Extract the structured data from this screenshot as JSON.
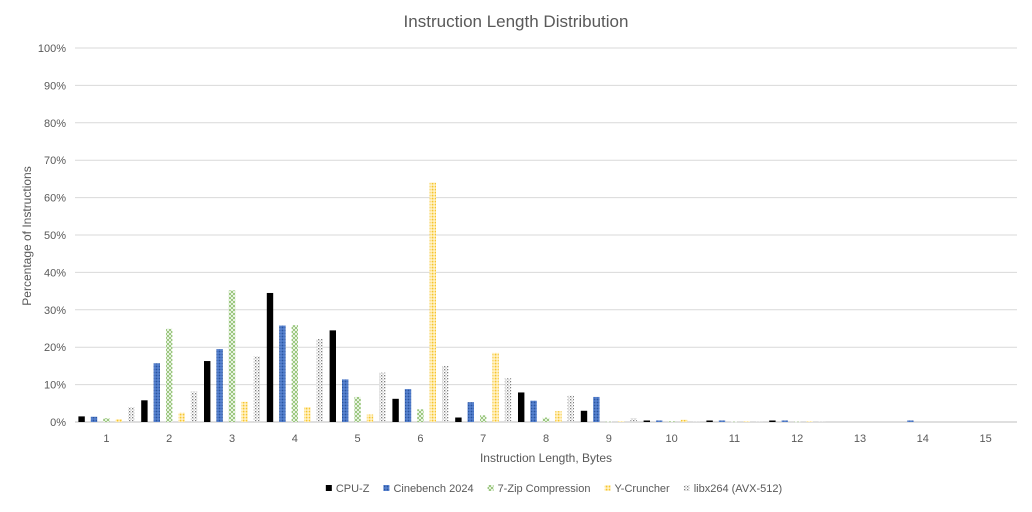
{
  "chart_data": {
    "type": "bar",
    "title": "Instruction Length Distribution",
    "xlabel": "Instruction Length, Bytes",
    "ylabel": "Percentage of Instructions",
    "categories": [
      "1",
      "2",
      "3",
      "4",
      "5",
      "6",
      "7",
      "8",
      "9",
      "10",
      "11",
      "12",
      "13",
      "14",
      "15"
    ],
    "ylim": [
      0,
      100
    ],
    "yticks": [
      "0%",
      "10%",
      "20%",
      "30%",
      "40%",
      "50%",
      "60%",
      "70%",
      "80%",
      "90%",
      "100%"
    ],
    "grid": true,
    "legend_position": "bottom",
    "series": [
      {
        "name": "CPU-Z",
        "color": "#000000",
        "pattern": "solid",
        "values": [
          1.5,
          5.8,
          16.3,
          34.5,
          24.5,
          6.2,
          1.2,
          7.9,
          3.0,
          0.4,
          0.4,
          0.4,
          0,
          0,
          0
        ]
      },
      {
        "name": "Cinebench 2024",
        "color": "#4472C4",
        "pattern": "dots-dark",
        "values": [
          1.4,
          15.7,
          19.5,
          25.8,
          11.4,
          8.8,
          5.3,
          5.7,
          6.7,
          0.4,
          0.4,
          0.4,
          0,
          0.4,
          0
        ]
      },
      {
        "name": "7-Zip Compression",
        "color": "#A9D18E",
        "pattern": "grid",
        "values": [
          1.0,
          24.9,
          35.2,
          25.9,
          6.7,
          3.4,
          1.8,
          1.2,
          0.1,
          0.2,
          0.1,
          0.1,
          0,
          0,
          0
        ]
      },
      {
        "name": "Y-Cruncher",
        "color": "#FFD966",
        "pattern": "dots-light",
        "values": [
          0.8,
          2.5,
          5.4,
          4.0,
          2.0,
          64.0,
          18.5,
          2.9,
          0.2,
          0.6,
          0.2,
          0.2,
          0,
          0,
          0
        ]
      },
      {
        "name": "libx264 (AVX-512)",
        "color": "#A6A6A6",
        "pattern": "dots-gray",
        "values": [
          4.0,
          8.2,
          17.6,
          22.2,
          13.2,
          15.0,
          11.7,
          7.1,
          1.0,
          0.2,
          0.2,
          0.2,
          0,
          0,
          0
        ]
      }
    ]
  }
}
